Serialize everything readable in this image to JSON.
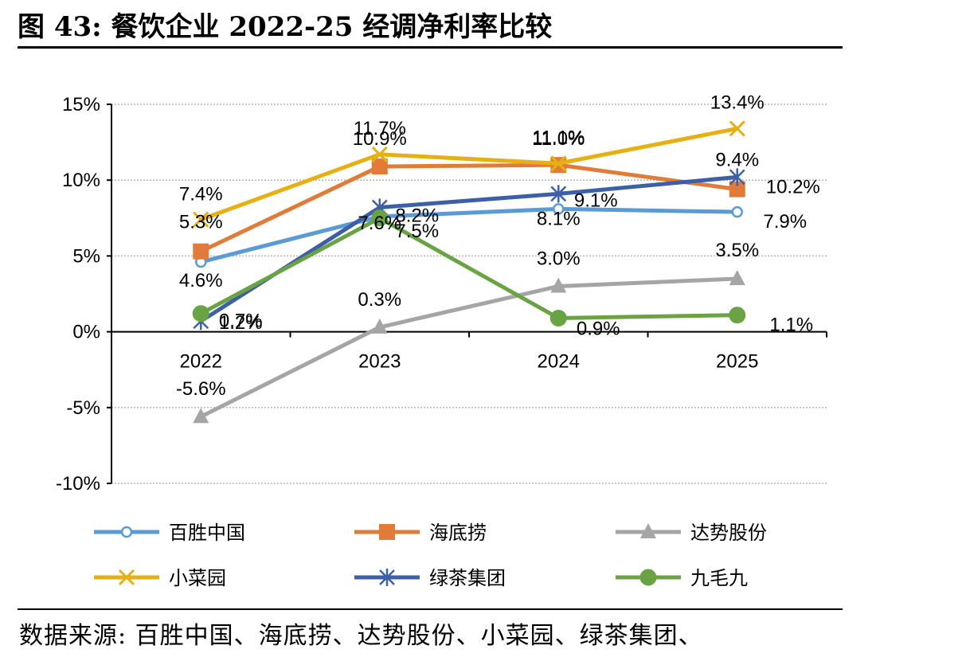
{
  "header": {
    "title": "图 43:  餐饮企业 2022-25 经调净利率比较"
  },
  "footer": {
    "source": "数据来源:  百胜中国、海底捞、达势股份、小菜园、绿茶集团、"
  },
  "chart_data": {
    "type": "line",
    "categories": [
      "2022",
      "2023",
      "2024",
      "2025"
    ],
    "ylim": [
      -10,
      15
    ],
    "yticks": [
      -10,
      -5,
      0,
      5,
      10,
      15
    ],
    "ytick_labels": [
      "-10%",
      "-5%",
      "0%",
      "5%",
      "10%",
      "15%"
    ],
    "grid": true,
    "legend_position": "bottom",
    "series": [
      {
        "name": "百胜中国",
        "color": "#5B9BD5",
        "marker": "open-circle",
        "values": [
          4.6,
          7.6,
          8.1,
          7.9
        ],
        "labels": [
          "4.6%",
          "7.6%",
          "8.1%",
          "7.9%"
        ]
      },
      {
        "name": "海底捞",
        "color": "#E07B39",
        "marker": "square",
        "values": [
          5.3,
          10.9,
          11.0,
          9.4
        ],
        "labels": [
          "5.3%",
          "10.9%",
          "11.0%",
          "9.4%"
        ]
      },
      {
        "name": "达势股份",
        "color": "#A5A5A5",
        "marker": "triangle",
        "values": [
          -5.6,
          0.3,
          3.0,
          3.5
        ],
        "labels": [
          "-5.6%",
          "0.3%",
          "3.0%",
          "3.5%"
        ]
      },
      {
        "name": "小菜园",
        "color": "#E6B012",
        "marker": "x",
        "values": [
          7.4,
          11.7,
          11.1,
          13.4
        ],
        "labels": [
          "7.4%",
          "11.7%",
          "11.1%",
          "13.4%"
        ]
      },
      {
        "name": "绿茶集团",
        "color": "#3C5FA8",
        "marker": "star",
        "values": [
          0.7,
          8.2,
          9.1,
          10.2
        ],
        "labels": [
          "0.7%",
          "8.2%",
          "9.1%",
          "10.2%"
        ]
      },
      {
        "name": "九毛九",
        "color": "#6AA343",
        "marker": "filled-circle",
        "values": [
          1.2,
          7.5,
          0.9,
          1.1
        ],
        "labels": [
          "1.2%",
          "7.5%",
          "0.9%",
          "1.1%"
        ]
      }
    ]
  }
}
